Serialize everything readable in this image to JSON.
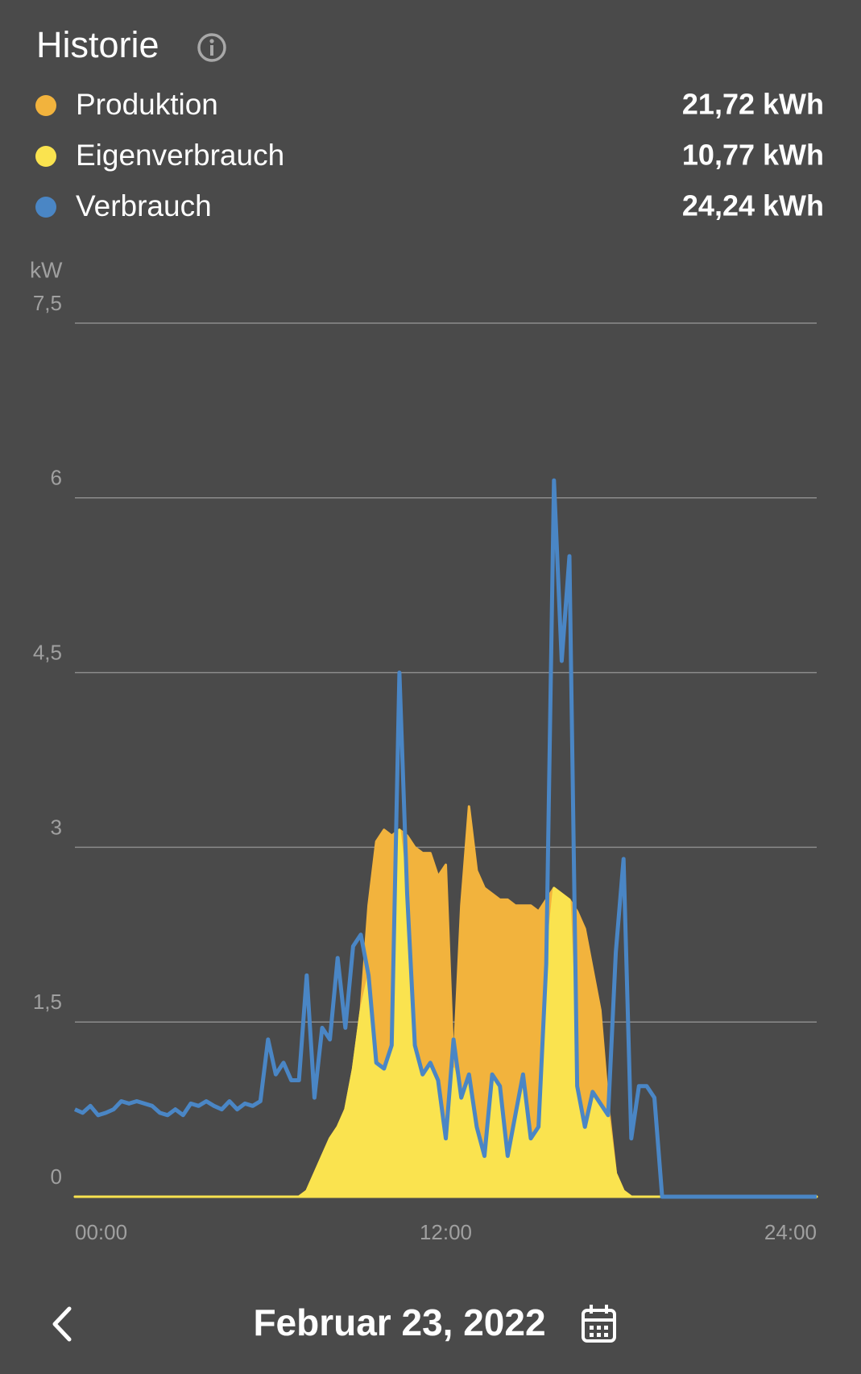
{
  "header": {
    "title": "Historie"
  },
  "chart_data": {
    "type": "area",
    "y_label": "kW",
    "xlim": [
      0,
      24
    ],
    "xticks": [
      {
        "value": 0,
        "label": "00:00"
      },
      {
        "value": 12,
        "label": "12:00"
      },
      {
        "value": 24,
        "label": "24:00"
      }
    ],
    "ylim": [
      0,
      7.5
    ],
    "yticks": [
      0,
      {
        "value": 1.5,
        "label": "1,5"
      },
      3,
      {
        "value": 4.5,
        "label": "4,5"
      },
      6,
      {
        "value": 7.5,
        "label": "7,5"
      }
    ],
    "grid": true,
    "x": [
      0,
      0.25,
      0.5,
      0.75,
      1,
      1.25,
      1.5,
      1.75,
      2,
      2.25,
      2.5,
      2.75,
      3,
      3.25,
      3.5,
      3.75,
      4,
      4.25,
      4.5,
      4.75,
      5,
      5.25,
      5.5,
      5.75,
      6,
      6.25,
      6.5,
      6.75,
      7,
      7.25,
      7.5,
      7.75,
      8,
      8.25,
      8.5,
      8.75,
      9,
      9.25,
      9.5,
      9.75,
      10,
      10.25,
      10.5,
      10.75,
      11,
      11.25,
      11.5,
      11.75,
      12,
      12.25,
      12.5,
      12.75,
      13,
      13.25,
      13.5,
      13.75,
      14,
      14.25,
      14.5,
      14.75,
      15,
      15.25,
      15.5,
      15.75,
      16,
      16.25,
      16.5,
      16.75,
      17,
      17.25,
      17.5,
      17.75,
      18,
      18.25,
      18.5,
      18.75,
      19,
      19.25,
      19.5,
      19.75,
      20,
      20.25,
      20.5,
      20.75,
      21,
      21.25,
      21.5,
      21.75,
      22,
      22.25,
      22.5,
      22.75,
      23,
      23.25,
      23.5,
      23.75,
      24
    ],
    "series": [
      {
        "name": "Produktion",
        "total": "21,72 kWh",
        "color": "#f2b33d",
        "mark": "area",
        "values": [
          0,
          0,
          0,
          0,
          0,
          0,
          0,
          0,
          0,
          0,
          0,
          0,
          0,
          0,
          0,
          0,
          0,
          0,
          0,
          0,
          0,
          0,
          0,
          0,
          0,
          0,
          0,
          0,
          0,
          0,
          0.05,
          0.2,
          0.35,
          0.5,
          0.6,
          0.75,
          1.1,
          1.6,
          2.5,
          3.05,
          3.15,
          3.1,
          3.15,
          3.1,
          3.0,
          2.95,
          2.95,
          2.75,
          2.85,
          1.1,
          2.5,
          3.35,
          2.8,
          2.65,
          2.6,
          2.55,
          2.55,
          2.5,
          2.5,
          2.5,
          2.45,
          2.55,
          2.65,
          2.6,
          2.55,
          2.45,
          2.3,
          1.95,
          1.6,
          0.8,
          0.2,
          0.05,
          0,
          0,
          0,
          0,
          0,
          0,
          0,
          0,
          0,
          0,
          0,
          0,
          0,
          0,
          0,
          0,
          0,
          0,
          0,
          0,
          0,
          0,
          0,
          0,
          0
        ]
      },
      {
        "name": "Eigenverbrauch",
        "total": "10,77 kWh",
        "color": "#fae34f",
        "mark": "area",
        "values": [
          0,
          0,
          0,
          0,
          0,
          0,
          0,
          0,
          0,
          0,
          0,
          0,
          0,
          0,
          0,
          0,
          0,
          0,
          0,
          0,
          0,
          0,
          0,
          0,
          0,
          0,
          0,
          0,
          0,
          0,
          0.05,
          0.2,
          0.35,
          0.5,
          0.6,
          0.75,
          1.1,
          1.6,
          1.9,
          1.15,
          1.1,
          1.3,
          3.15,
          2.6,
          1.3,
          1.05,
          1.15,
          1.0,
          0.5,
          1.1,
          0.85,
          1.05,
          0.6,
          0.35,
          1.05,
          0.95,
          0.35,
          0.7,
          1.05,
          0.5,
          0.6,
          2.0,
          2.65,
          2.6,
          2.55,
          0.95,
          0.6,
          0.9,
          0.8,
          0.7,
          0.2,
          0.05,
          0,
          0,
          0,
          0,
          0,
          0,
          0,
          0,
          0,
          0,
          0,
          0,
          0,
          0,
          0,
          0,
          0,
          0,
          0,
          0,
          0,
          0,
          0,
          0,
          0
        ]
      },
      {
        "name": "Verbrauch",
        "total": "24,24 kWh",
        "color": "#4a86c5",
        "mark": "line",
        "values": [
          0.75,
          0.72,
          0.78,
          0.7,
          0.72,
          0.75,
          0.82,
          0.8,
          0.82,
          0.8,
          0.78,
          0.72,
          0.7,
          0.75,
          0.7,
          0.8,
          0.78,
          0.82,
          0.78,
          0.75,
          0.82,
          0.75,
          0.8,
          0.78,
          0.82,
          1.35,
          1.05,
          1.15,
          1.0,
          1.0,
          1.9,
          0.85,
          1.45,
          1.35,
          2.05,
          1.45,
          2.15,
          2.25,
          1.9,
          1.15,
          1.1,
          1.3,
          4.5,
          2.6,
          1.3,
          1.05,
          1.15,
          1.0,
          0.5,
          1.35,
          0.85,
          1.05,
          0.6,
          0.35,
          1.05,
          0.95,
          0.35,
          0.7,
          1.05,
          0.5,
          0.6,
          2.0,
          6.15,
          4.6,
          5.5,
          0.95,
          0.6,
          0.9,
          0.8,
          0.7,
          2.1,
          2.9,
          0.5,
          0.95,
          0.95,
          0.85,
          0,
          0,
          0,
          0,
          0,
          0,
          0,
          0,
          0,
          0,
          0,
          0,
          0,
          0,
          0,
          0,
          0,
          0,
          0,
          0,
          0
        ]
      }
    ]
  },
  "footer": {
    "date": "Februar 23, 2022"
  }
}
